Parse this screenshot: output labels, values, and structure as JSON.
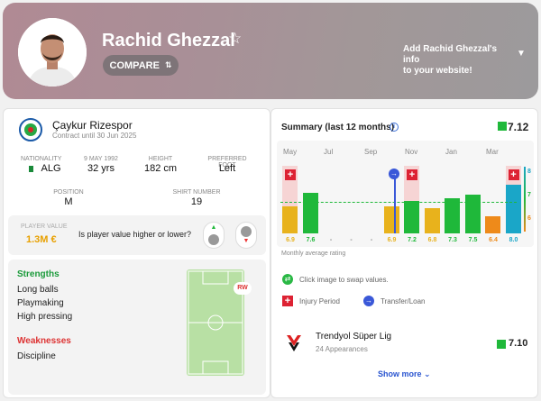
{
  "player": {
    "name": "Rachid Ghezzal",
    "compare_label": "COMPARE",
    "promo_line1": "Add Rachid Ghezzal's info",
    "promo_line2": "to your website!"
  },
  "club": {
    "name": "Çaykur Rizespor",
    "contract": "Contract until 30 Jun 2025"
  },
  "details": {
    "nationality_label": "NATIONALITY",
    "nationality": "ALG",
    "dob": "9 MAY 1992",
    "age": "32 yrs",
    "height_label": "HEIGHT",
    "height": "182 cm",
    "foot_label": "PREFERRED FOOT",
    "foot": "Left",
    "position_label": "POSITION",
    "position": "M",
    "shirt_label": "SHIRT NUMBER",
    "shirt": "19"
  },
  "value": {
    "label": "PLAYER VALUE",
    "amount": "1.3M €",
    "question": "Is player value higher or lower?"
  },
  "strengths": {
    "title": "Strengths",
    "items": [
      "Long balls",
      "Playmaking",
      "High pressing"
    ]
  },
  "weaknesses": {
    "title": "Weaknesses",
    "items": [
      "Discipline"
    ]
  },
  "pitch": {
    "position_badge": "RW"
  },
  "summary": {
    "title": "Summary (last 12 months)",
    "rating": "7.12",
    "avg_label": "Monthly average rating",
    "swap_hint": "Click image to swap values.",
    "injury_label": "Injury Period",
    "transfer_label": "Transfer/Loan"
  },
  "chart_data": {
    "type": "bar",
    "months": [
      "May",
      "Jul",
      "Sep",
      "Nov",
      "Jan",
      "Mar"
    ],
    "labels": [
      "6.9",
      "7.6",
      "-",
      "-",
      "-",
      "6.9",
      "7.2",
      "6.8",
      "7.3",
      "7.5",
      "6.4",
      "8.0"
    ],
    "values": [
      6.9,
      7.6,
      null,
      null,
      null,
      6.9,
      7.2,
      6.8,
      7.3,
      7.5,
      6.4,
      8.0
    ],
    "colors": [
      "#e8b21c",
      "#1fb83a",
      null,
      null,
      null,
      "#e8b21c",
      "#1fb83a",
      "#e8b21c",
      "#1fb83a",
      "#1fb83a",
      "#ee8a1a",
      "#1aa6c8"
    ],
    "average": 7.12,
    "yticks": [
      "8",
      "7",
      "6"
    ],
    "injury_months": [
      0,
      6,
      11
    ],
    "transfer_month": 5
  },
  "league": {
    "name": "Trendyol Süper Lig",
    "appearances": "24 Appearances",
    "rating": "7.10"
  },
  "show_more": "Show more",
  "colors": {
    "accent": "#1fb83a",
    "link": "#2a55d0"
  }
}
